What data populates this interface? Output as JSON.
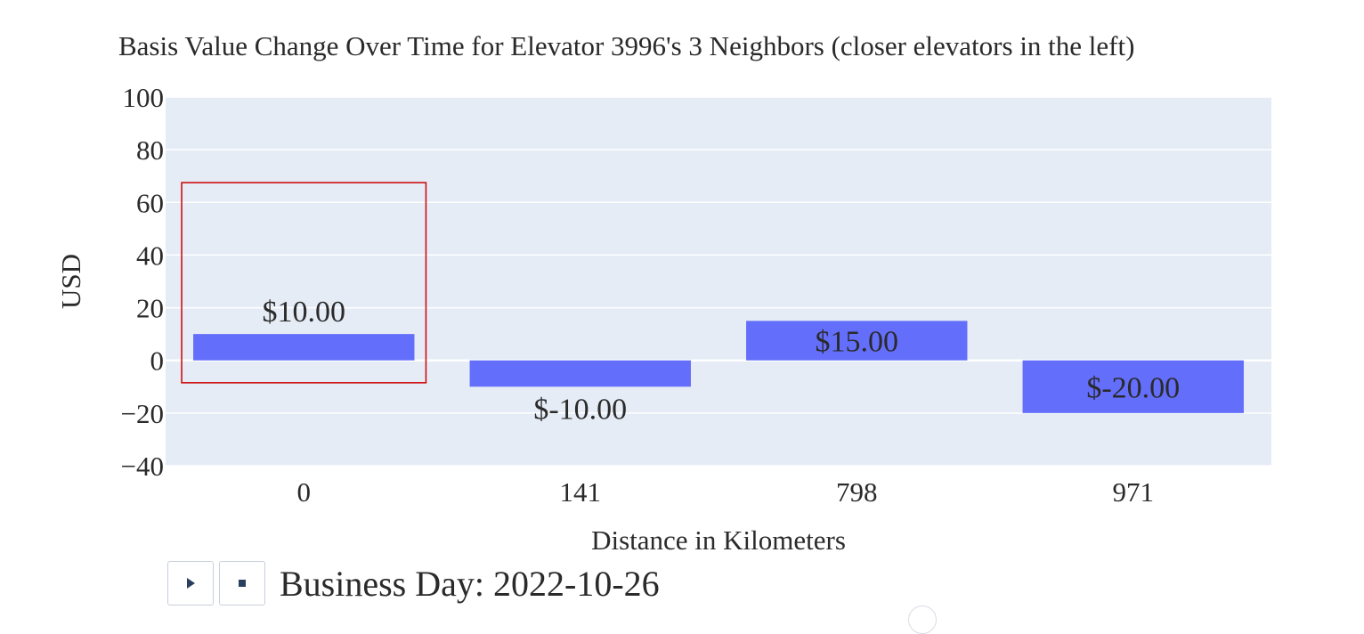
{
  "chart_data": {
    "type": "bar",
    "title": "Basis Value Change Over Time for Elevator 3996's 3 Neighbors (closer elevators in the left)",
    "xlabel": "Distance in Kilometers",
    "ylabel": "USD",
    "categories": [
      "0",
      "141",
      "798",
      "971"
    ],
    "values": [
      10,
      -10,
      15,
      -20
    ],
    "data_labels": [
      "$10.00",
      "$-10.00",
      "$15.00",
      "$-20.00"
    ],
    "ylim": [
      -40,
      100
    ],
    "yticks": [
      -40,
      -20,
      0,
      20,
      40,
      60,
      80,
      100
    ],
    "ytick_labels": [
      "−40",
      "−20",
      "0",
      "20",
      "40",
      "60",
      "80",
      "100"
    ],
    "grid": true,
    "bar_color": "#636efa",
    "plot_bgcolor": "#e5ecf6",
    "highlight_color": "#cc0000"
  },
  "controls": {
    "play_icon": "play-icon",
    "stop_icon": "stop-icon",
    "slider_label": "Business Day: 2022-10-26"
  }
}
